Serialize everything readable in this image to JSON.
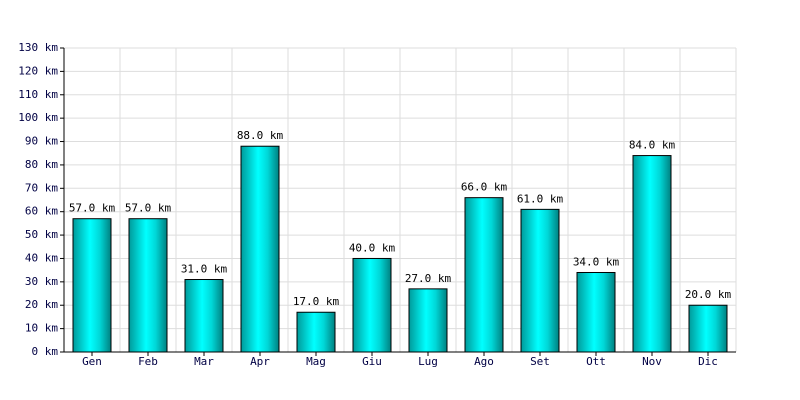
{
  "chart_data": {
    "type": "bar",
    "categories": [
      "Gen",
      "Feb",
      "Mar",
      "Apr",
      "Mag",
      "Giu",
      "Lug",
      "Ago",
      "Set",
      "Ott",
      "Nov",
      "Dic"
    ],
    "values": [
      57,
      57,
      31,
      88,
      17,
      40,
      27,
      66,
      61,
      34,
      84,
      20
    ],
    "value_labels": [
      "57.0 km",
      "57.0 km",
      "31.0 km",
      "88.0 km",
      "17.0 km",
      "40.0 km",
      "27.0 km",
      "66.0 km",
      "61.0 km",
      "34.0 km",
      "84.0 km",
      "20.0 km"
    ],
    "color": "#00cccc",
    "ylim": [
      0,
      130
    ],
    "yticks": [
      {
        "value": 0,
        "label": "0 km"
      },
      {
        "value": 10,
        "label": "10 km"
      },
      {
        "value": 20,
        "label": "20 km"
      },
      {
        "value": 30,
        "label": "30 km"
      },
      {
        "value": 40,
        "label": "40 km"
      },
      {
        "value": 50,
        "label": "50 km"
      },
      {
        "value": 60,
        "label": "60 km"
      },
      {
        "value": 70,
        "label": "70 km"
      },
      {
        "value": 80,
        "label": "80 km"
      },
      {
        "value": 90,
        "label": "90 km"
      },
      {
        "value": 100,
        "label": "100 km"
      },
      {
        "value": 110,
        "label": "110 km"
      },
      {
        "value": 120,
        "label": "120 km"
      },
      {
        "value": 130,
        "label": "130 km"
      }
    ],
    "grid": true
  }
}
